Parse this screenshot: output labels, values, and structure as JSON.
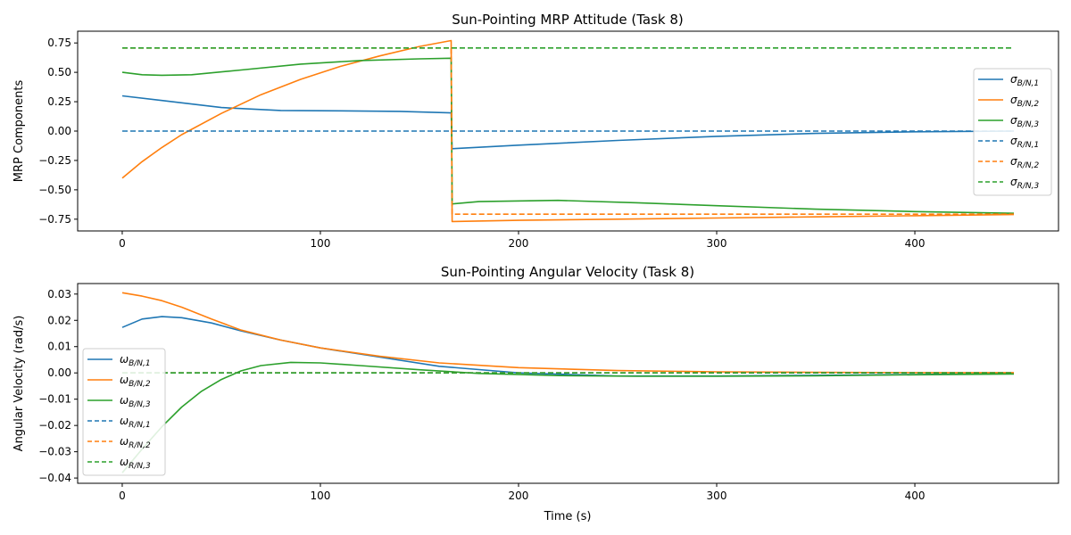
{
  "chart_data": [
    {
      "type": "line",
      "title": "Sun-Pointing MRP Attitude (Task 8)",
      "xlabel": "",
      "ylabel": "MRP Components",
      "xlim": [
        -22.5,
        472.5
      ],
      "ylim": [
        -0.85,
        0.85
      ],
      "xticks": [
        0,
        100,
        200,
        300,
        400
      ],
      "xtick_labels": [
        "0",
        "100",
        "200",
        "300",
        "400"
      ],
      "yticks": [
        -0.75,
        -0.5,
        -0.25,
        0.0,
        0.25,
        0.5,
        0.75
      ],
      "ytick_labels": [
        "−0.75",
        "−0.50",
        "−0.25",
        "0.00",
        "0.25",
        "0.50",
        "0.75"
      ],
      "legend_position": "center-right",
      "grid": false,
      "series": [
        {
          "name": "σ_{B/N,1}",
          "sym": "σ",
          "sub": "B/N,1",
          "color": "#1f77b4",
          "style": "solid",
          "x": [
            0,
            20,
            50,
            80,
            110,
            140,
            166,
            166.5,
            200,
            250,
            300,
            350,
            400,
            450
          ],
          "y": [
            0.3,
            0.26,
            0.2,
            0.175,
            0.172,
            0.168,
            0.155,
            -0.15,
            -0.12,
            -0.08,
            -0.045,
            -0.02,
            -0.006,
            0.0
          ]
        },
        {
          "name": "σ_{B/N,2}",
          "sym": "σ",
          "sub": "B/N,2",
          "color": "#ff7f0e",
          "style": "solid",
          "x": [
            0,
            10,
            20,
            30,
            50,
            70,
            90,
            110,
            130,
            150,
            166,
            166.5,
            200,
            250,
            300,
            350,
            400,
            450
          ],
          "y": [
            -0.4,
            -0.26,
            -0.14,
            -0.03,
            0.15,
            0.31,
            0.44,
            0.55,
            0.64,
            0.72,
            0.77,
            -0.77,
            -0.76,
            -0.75,
            -0.74,
            -0.73,
            -0.72,
            -0.71
          ]
        },
        {
          "name": "σ_{B/N,3}",
          "sym": "σ",
          "sub": "B/N,3",
          "color": "#2ca02c",
          "style": "solid",
          "x": [
            0,
            10,
            20,
            35,
            60,
            90,
            120,
            150,
            166,
            166.5,
            180,
            220,
            260,
            300,
            350,
            400,
            450
          ],
          "y": [
            0.5,
            0.48,
            0.475,
            0.48,
            0.52,
            0.57,
            0.6,
            0.615,
            0.62,
            -0.62,
            -0.6,
            -0.59,
            -0.61,
            -0.635,
            -0.665,
            -0.685,
            -0.7
          ]
        },
        {
          "name": "σ_{R/N,1}",
          "sym": "σ",
          "sub": "R/N,1",
          "color": "#1f77b4",
          "style": "dashed",
          "x": [
            0,
            450
          ],
          "y": [
            0.0,
            0.0
          ]
        },
        {
          "name": "σ_{R/N,2}",
          "sym": "σ",
          "sub": "R/N,2",
          "color": "#ff7f0e",
          "style": "dashed",
          "x": [
            0,
            166,
            166.5,
            450
          ],
          "y": [
            0.707,
            0.707,
            -0.707,
            -0.707
          ]
        },
        {
          "name": "σ_{R/N,3}",
          "sym": "σ",
          "sub": "R/N,3",
          "color": "#2ca02c",
          "style": "dashed",
          "x": [
            0,
            450
          ],
          "y": [
            0.707,
            0.707
          ]
        }
      ]
    },
    {
      "type": "line",
      "title": "Sun-Pointing Angular Velocity (Task 8)",
      "xlabel": "Time (s)",
      "ylabel": "Angular Velocity (rad/s)",
      "xlim": [
        -22.5,
        472.5
      ],
      "ylim": [
        -0.042,
        0.034
      ],
      "xticks": [
        0,
        100,
        200,
        300,
        400
      ],
      "xtick_labels": [
        "0",
        "100",
        "200",
        "300",
        "400"
      ],
      "yticks": [
        -0.04,
        -0.03,
        -0.02,
        -0.01,
        0.0,
        0.01,
        0.02,
        0.03
      ],
      "ytick_labels": [
        "−0.04",
        "−0.03",
        "−0.02",
        "−0.01",
        "0.00",
        "0.01",
        "0.02",
        "0.03"
      ],
      "legend_position": "lower-left",
      "grid": false,
      "series": [
        {
          "name": "ω_{B/N,1}",
          "sym": "ω",
          "sub": "B/N,1",
          "color": "#1f77b4",
          "style": "solid",
          "x": [
            0,
            10,
            20,
            30,
            45,
            60,
            80,
            100,
            130,
            160,
            200,
            250,
            300,
            350,
            400,
            450
          ],
          "y": [
            0.0173,
            0.0205,
            0.0214,
            0.021,
            0.019,
            0.016,
            0.0125,
            0.0095,
            0.006,
            0.0025,
            0.0,
            -0.0012,
            -0.0012,
            -0.0009,
            -0.0006,
            -0.0003
          ]
        },
        {
          "name": "ω_{B/N,2}",
          "sym": "ω",
          "sub": "B/N,2",
          "color": "#ff7f0e",
          "style": "solid",
          "x": [
            0,
            10,
            20,
            30,
            45,
            60,
            80,
            100,
            130,
            160,
            200,
            250,
            300,
            350,
            400,
            450
          ],
          "y": [
            0.0305,
            0.0292,
            0.0275,
            0.025,
            0.0205,
            0.0163,
            0.0125,
            0.0095,
            0.0063,
            0.0038,
            0.002,
            0.0009,
            0.0004,
            0.0002,
            0.0001,
            0.0001
          ]
        },
        {
          "name": "ω_{B/N,3}",
          "sym": "ω",
          "sub": "B/N,3",
          "color": "#2ca02c",
          "style": "solid",
          "x": [
            0,
            10,
            20,
            30,
            40,
            50,
            60,
            70,
            85,
            100,
            120,
            150,
            180,
            220,
            260,
            300,
            350,
            400,
            450
          ],
          "y": [
            -0.038,
            -0.029,
            -0.0205,
            -0.013,
            -0.007,
            -0.0025,
            0.0008,
            0.0028,
            0.004,
            0.0038,
            0.0028,
            0.0012,
            -0.0002,
            -0.001,
            -0.0013,
            -0.0013,
            -0.0011,
            -0.0007,
            -0.0004
          ]
        },
        {
          "name": "ω_{R/N,1}",
          "sym": "ω",
          "sub": "R/N,1",
          "color": "#1f77b4",
          "style": "dashed",
          "x": [
            0,
            450
          ],
          "y": [
            0.0,
            0.0
          ]
        },
        {
          "name": "ω_{R/N,2}",
          "sym": "ω",
          "sub": "R/N,2",
          "color": "#ff7f0e",
          "style": "dashed",
          "x": [
            0,
            450
          ],
          "y": [
            0.0,
            0.0
          ]
        },
        {
          "name": "ω_{R/N,3}",
          "sym": "ω",
          "sub": "R/N,3",
          "color": "#2ca02c",
          "style": "dashed",
          "x": [
            0,
            450
          ],
          "y": [
            0.0,
            0.0
          ]
        }
      ]
    }
  ]
}
